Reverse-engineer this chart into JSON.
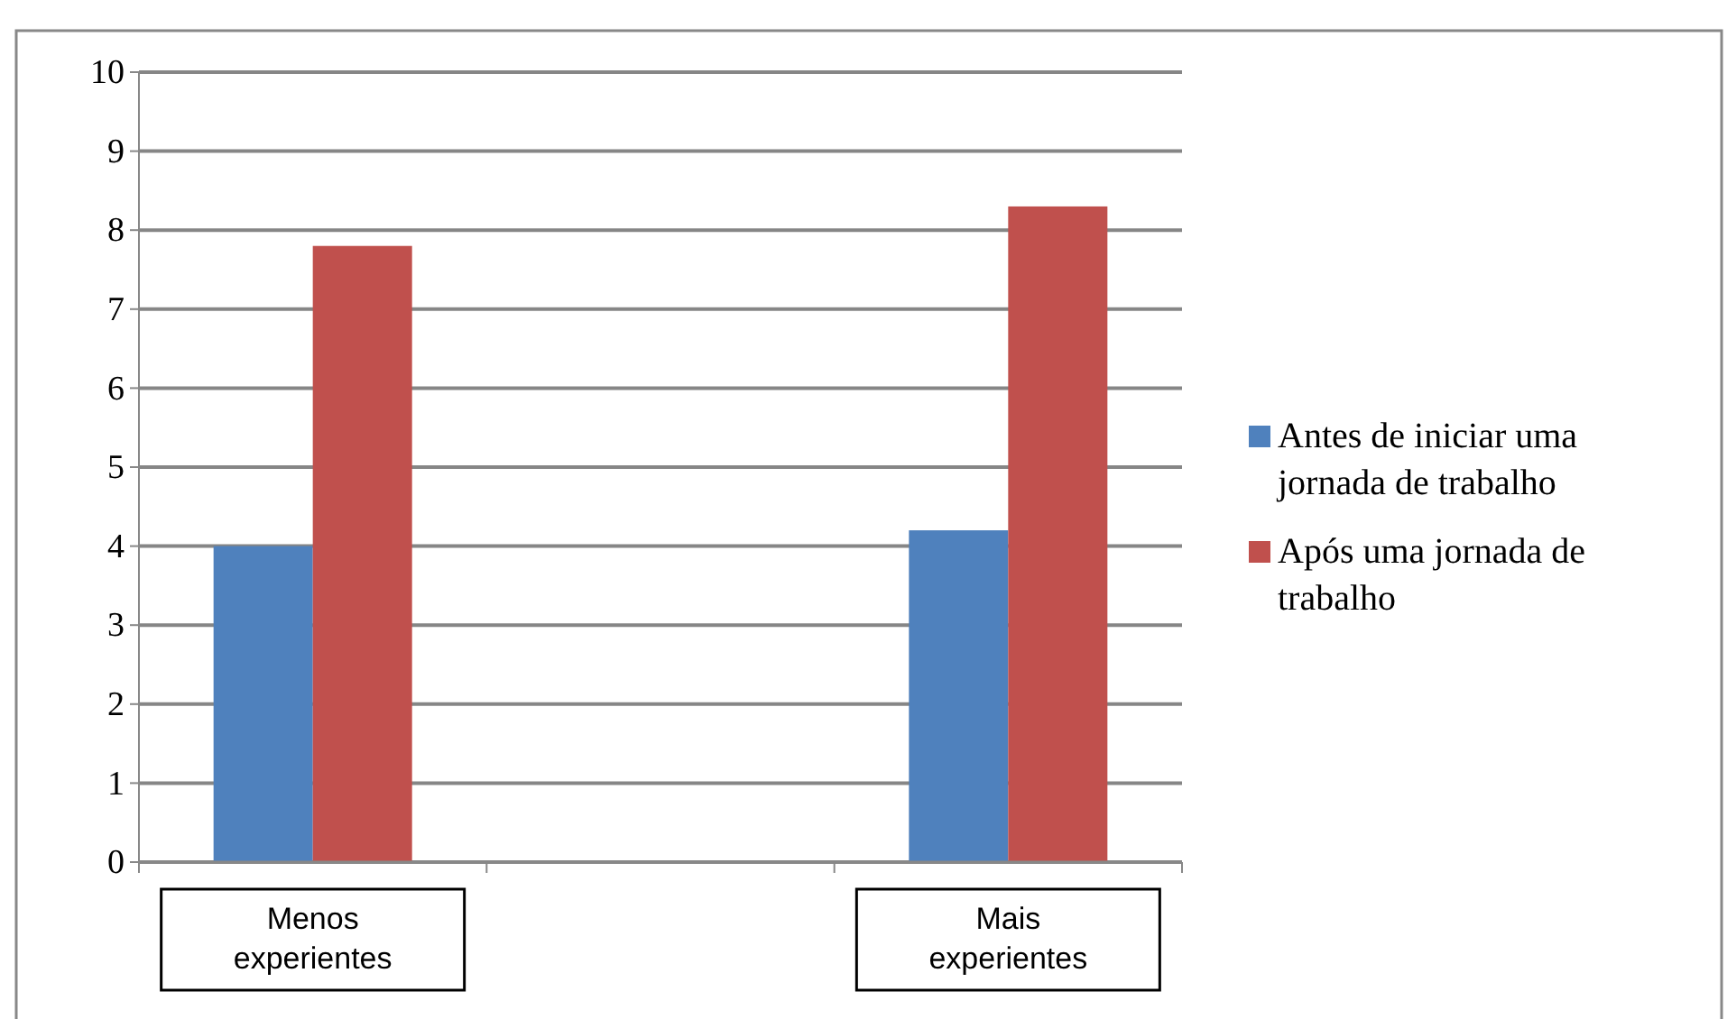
{
  "chart_data": {
    "type": "bar",
    "categories": [
      "Menos experientes",
      null,
      "Mais experientes"
    ],
    "series": [
      {
        "name": "Antes de iniciar uma jornada de trabalho",
        "color": "#4f81bd",
        "values": [
          4,
          null,
          4.2
        ]
      },
      {
        "name": "Após uma jornada de trabalho",
        "color": "#c0504d",
        "values": [
          7.8,
          null,
          8.3
        ]
      }
    ],
    "ylim": [
      0,
      10
    ],
    "yticks": [
      0,
      1,
      2,
      3,
      4,
      5,
      6,
      7,
      8,
      9,
      10
    ],
    "grid": "y",
    "legend": "right"
  }
}
